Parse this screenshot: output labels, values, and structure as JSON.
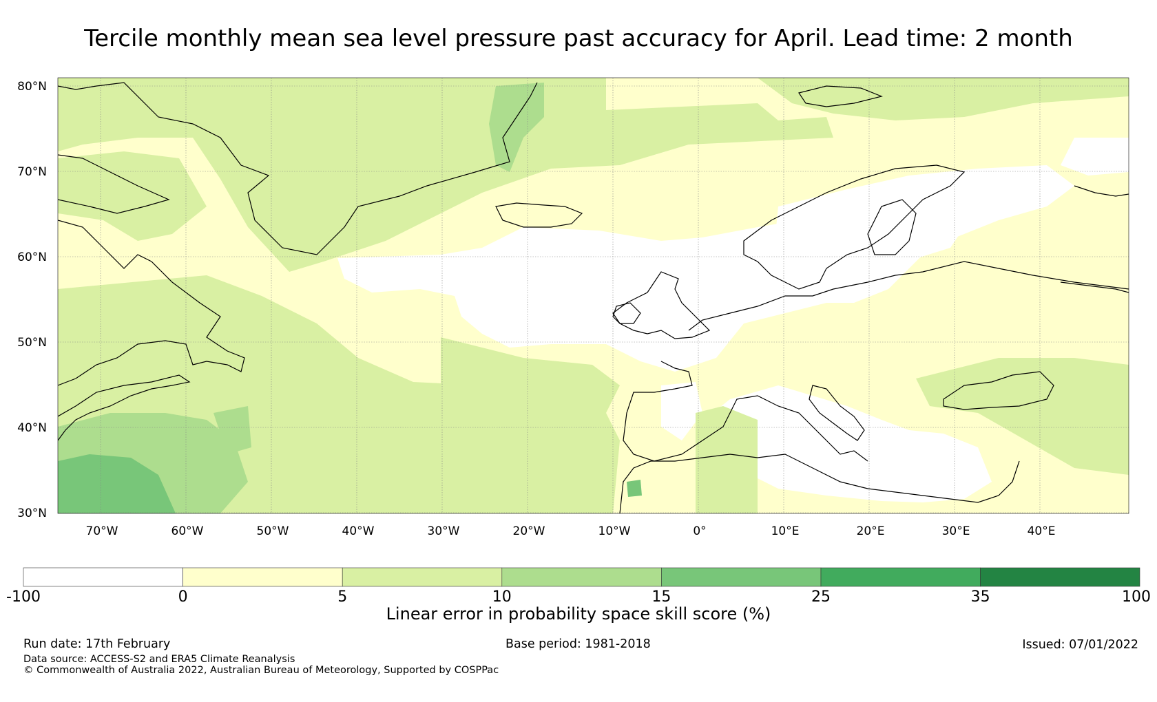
{
  "title": "Tercile monthly mean sea level pressure past accuracy for April. Lead time: 2 month",
  "map": {
    "lon_range": [
      -75,
      50
    ],
    "lat_range": [
      30,
      81
    ],
    "lat_ticks": [
      "80°N",
      "70°N",
      "60°N",
      "50°N",
      "40°N",
      "30°N"
    ],
    "lat_tick_values": [
      80,
      70,
      60,
      50,
      40,
      30
    ],
    "lon_ticks": [
      "70°W",
      "60°W",
      "50°W",
      "40°W",
      "30°W",
      "20°W",
      "10°W",
      "0°",
      "10°E",
      "20°E",
      "30°E",
      "40°E"
    ],
    "lon_tick_values": [
      -70,
      -60,
      -50,
      -40,
      -30,
      -20,
      -10,
      0,
      10,
      20,
      30,
      40
    ],
    "gridlines": true
  },
  "colorbar": {
    "boundaries": [
      "-100",
      "0",
      "5",
      "10",
      "15",
      "25",
      "35",
      "100"
    ],
    "colors": [
      "#ffffff",
      "#ffffcc",
      "#d9f0a3",
      "#addd8e",
      "#78c679",
      "#41ab5d",
      "#238443"
    ],
    "label": "Linear error in probability space skill score (%)"
  },
  "footer": {
    "run_date": "Run date: 17th February",
    "base_period": "Base period: 1981-2018",
    "issued": "Issued: 07/01/2022",
    "data_source": "Data source: ACCESS-S2 and ERA5 Climate Reanalysis",
    "copyright": "© Commonwealth of Australia 2022, Australian Bureau of Meteorology, Supported by COSPPac"
  }
}
